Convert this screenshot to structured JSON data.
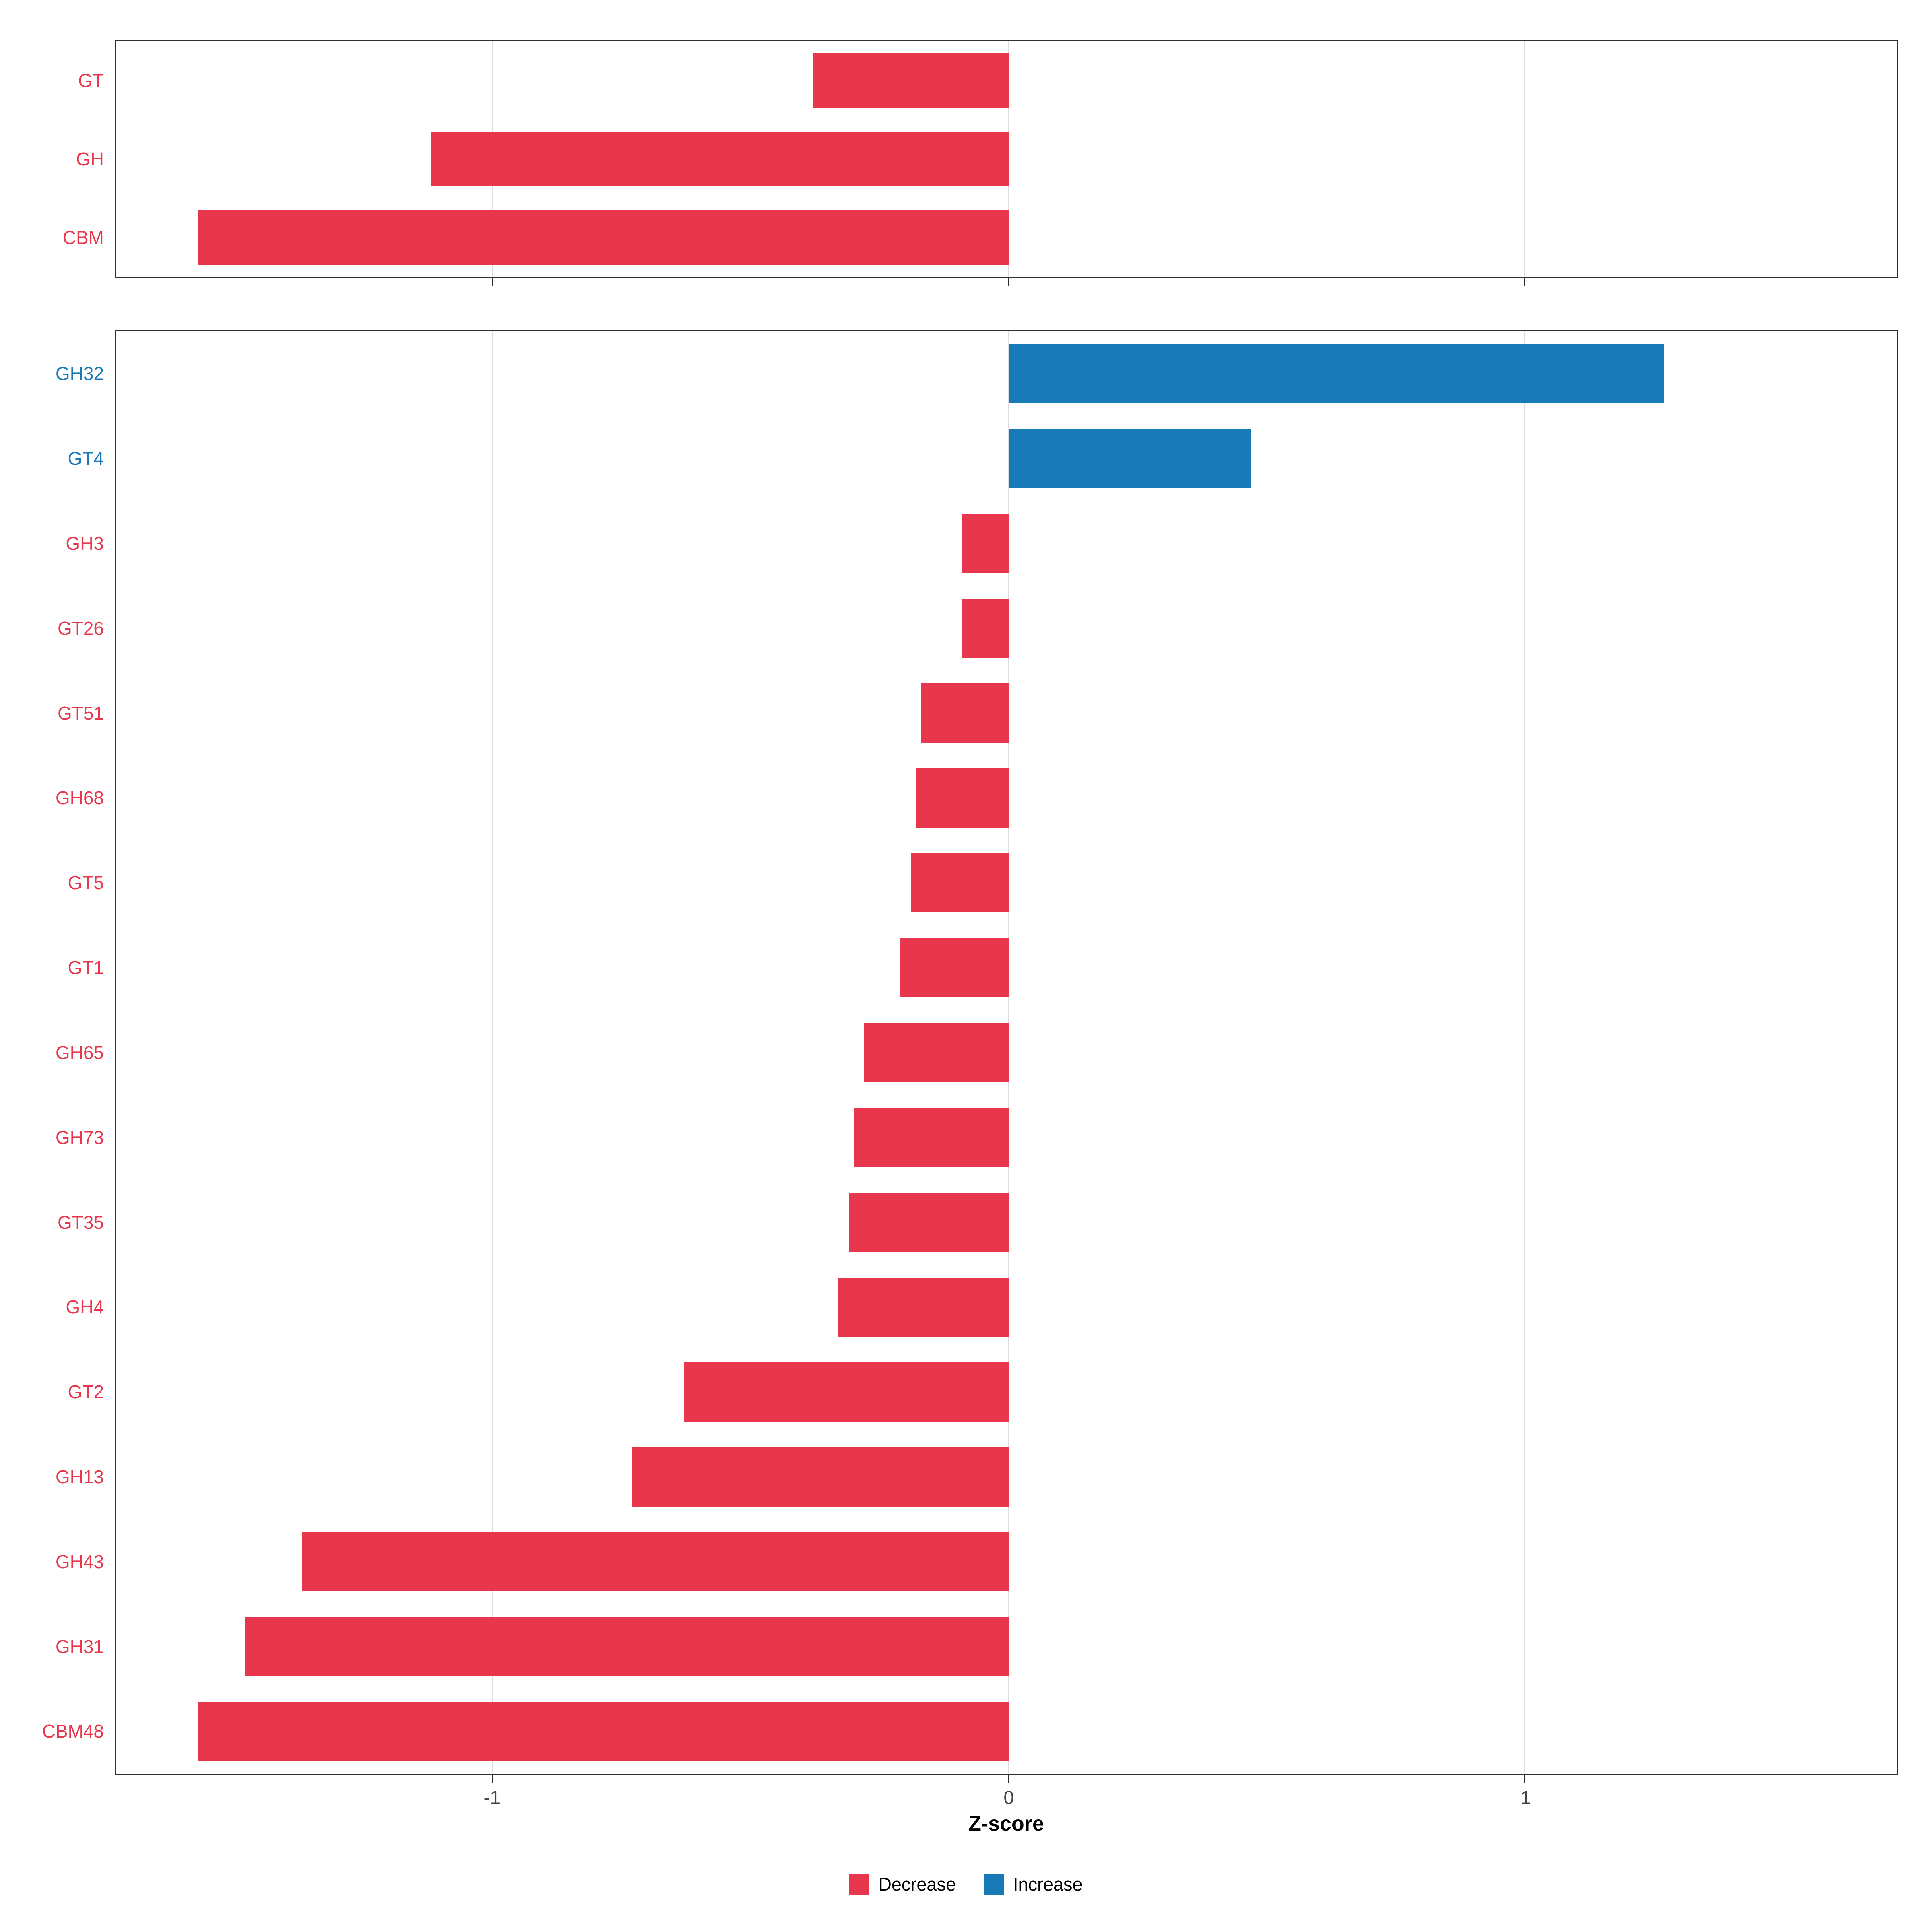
{
  "colors": {
    "decrease": "#E8364D",
    "increase": "#1779B5",
    "grid": "#DEDEDE",
    "tick_text": "#444444",
    "panel_border": "#2F2F2F"
  },
  "axis": {
    "xlabel": "Z-score",
    "xlim": [
      -1.73,
      1.72
    ],
    "ticks": [
      -1,
      0,
      1
    ],
    "tick_labels": [
      "-1",
      "0",
      "1"
    ]
  },
  "legend": {
    "items": [
      {
        "label": "Decrease",
        "color_key": "decrease"
      },
      {
        "label": "Increase",
        "color_key": "increase"
      }
    ]
  },
  "chart_data": {
    "type": "bar",
    "orientation": "horizontal",
    "title": "",
    "xlabel": "Z-score",
    "xlim": [
      -1.73,
      1.72
    ],
    "grid": "vertical major gridlines at -1, 0, 1",
    "legend_position": "bottom",
    "color_rule": "negative value = Decrease (red), positive value = Increase (blue); y-axis labels colored to match",
    "panels": [
      {
        "id": "top",
        "categories": [
          "GT",
          "GH",
          "CBM"
        ],
        "values": [
          -0.38,
          -1.12,
          -1.57
        ]
      },
      {
        "id": "bottom",
        "categories": [
          "GH32",
          "GT4",
          "GH3",
          "GT26",
          "GT51",
          "GH68",
          "GT5",
          "GT1",
          "GH65",
          "GH73",
          "GT35",
          "GH4",
          "GT2",
          "GH13",
          "GH43",
          "GH31",
          "CBM48"
        ],
        "values": [
          1.27,
          0.47,
          -0.09,
          -0.09,
          -0.17,
          -0.18,
          -0.19,
          -0.21,
          -0.28,
          -0.3,
          -0.31,
          -0.33,
          -0.63,
          -0.73,
          -1.37,
          -1.48,
          -1.57
        ]
      }
    ]
  }
}
